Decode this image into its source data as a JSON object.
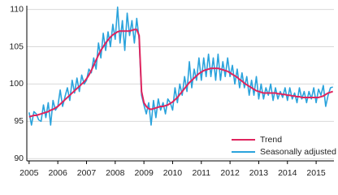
{
  "chart_data": {
    "type": "line",
    "x": [
      2005,
      2005.083,
      2005.167,
      2005.25,
      2005.333,
      2005.417,
      2005.5,
      2005.583,
      2005.667,
      2005.75,
      2005.833,
      2005.917,
      2006,
      2006.083,
      2006.167,
      2006.25,
      2006.333,
      2006.417,
      2006.5,
      2006.583,
      2006.667,
      2006.75,
      2006.833,
      2006.917,
      2007,
      2007.083,
      2007.167,
      2007.25,
      2007.333,
      2007.417,
      2007.5,
      2007.583,
      2007.667,
      2007.75,
      2007.833,
      2007.917,
      2008,
      2008.083,
      2008.167,
      2008.25,
      2008.333,
      2008.417,
      2008.5,
      2008.583,
      2008.667,
      2008.75,
      2008.833,
      2008.917,
      2009,
      2009.083,
      2009.167,
      2009.25,
      2009.333,
      2009.417,
      2009.5,
      2009.583,
      2009.667,
      2009.75,
      2009.833,
      2009.917,
      2010,
      2010.083,
      2010.167,
      2010.25,
      2010.333,
      2010.417,
      2010.5,
      2010.583,
      2010.667,
      2010.75,
      2010.833,
      2010.917,
      2011,
      2011.083,
      2011.167,
      2011.25,
      2011.333,
      2011.417,
      2011.5,
      2011.583,
      2011.667,
      2011.75,
      2011.833,
      2011.917,
      2012,
      2012.083,
      2012.167,
      2012.25,
      2012.333,
      2012.417,
      2012.5,
      2012.583,
      2012.667,
      2012.75,
      2012.833,
      2012.917,
      2013,
      2013.083,
      2013.167,
      2013.25,
      2013.333,
      2013.417,
      2013.5,
      2013.583,
      2013.667,
      2013.75,
      2013.833,
      2013.917,
      2014,
      2014.083,
      2014.167,
      2014.25,
      2014.333,
      2014.417,
      2014.5,
      2014.583,
      2014.667,
      2014.75,
      2014.833,
      2014.917,
      2015,
      2015.083,
      2015.167,
      2015.25,
      2015.333,
      2015.417,
      2015.5,
      2015.583
    ],
    "series": [
      {
        "name": "Seasonally adjusted",
        "color": "#2ba3dc",
        "values": [
          96.2,
          94.5,
          96.3,
          96.0,
          95.2,
          95.0,
          97.2,
          95.5,
          97.5,
          94.5,
          97.8,
          96.5,
          97.0,
          99.2,
          97.0,
          98.3,
          99.5,
          97.8,
          100.5,
          98.8,
          100.8,
          99.0,
          101.2,
          100.0,
          100.5,
          102.0,
          101.5,
          103.5,
          102.0,
          105.5,
          103.5,
          106.8,
          104.5,
          107.0,
          105.0,
          108.0,
          106.0,
          110.3,
          105.5,
          108.5,
          104.5,
          109.5,
          106.5,
          108.5,
          105.5,
          108.8,
          106.0,
          98.5,
          97.2,
          96.0,
          97.5,
          94.5,
          97.8,
          95.5,
          98.0,
          96.5,
          97.5,
          96.0,
          98.0,
          97.5,
          96.5,
          99.5,
          97.5,
          100.0,
          98.5,
          101.0,
          99.0,
          103.0,
          99.5,
          102.0,
          100.5,
          103.5,
          100.5,
          103.5,
          101.0,
          104.0,
          101.0,
          103.5,
          100.5,
          104.0,
          100.5,
          103.0,
          101.0,
          103.5,
          101.0,
          102.5,
          100.0,
          102.0,
          99.5,
          101.5,
          99.5,
          101.0,
          98.5,
          100.5,
          98.5,
          101.0,
          98.0,
          100.0,
          98.0,
          99.5,
          98.5,
          100.0,
          97.8,
          99.5,
          98.0,
          99.0,
          98.2,
          99.5,
          97.8,
          99.5,
          98.0,
          98.8,
          97.5,
          99.5,
          98.0,
          99.0,
          97.5,
          99.0,
          98.0,
          99.5,
          97.5,
          99.3,
          98.5,
          99.8,
          97.0,
          98.5,
          99.5,
          99.6
        ]
      },
      {
        "name": "Trend",
        "color": "#e0245e",
        "values": [
          95.6,
          95.7,
          95.8,
          95.8,
          95.9,
          96.0,
          96.1,
          96.2,
          96.3,
          96.5,
          96.6,
          96.8,
          97.0,
          97.3,
          97.6,
          97.9,
          98.2,
          98.5,
          98.8,
          99.1,
          99.4,
          99.7,
          100.0,
          100.3,
          100.7,
          101.2,
          101.8,
          102.5,
          103.2,
          103.9,
          104.5,
          105.0,
          105.5,
          105.9,
          106.3,
          106.6,
          106.8,
          107.0,
          107.1,
          107.1,
          107.1,
          107.1,
          107.1,
          107.2,
          107.3,
          107.3,
          106.5,
          99.0,
          97.5,
          97.0,
          96.7,
          96.6,
          96.7,
          96.8,
          96.9,
          97.0,
          97.0,
          97.1,
          97.2,
          97.4,
          97.6,
          97.9,
          98.2,
          98.6,
          99.0,
          99.4,
          99.8,
          100.2,
          100.5,
          100.8,
          101.1,
          101.4,
          101.6,
          101.8,
          101.9,
          102.0,
          102.1,
          102.1,
          102.1,
          102.1,
          102.0,
          101.9,
          101.8,
          101.7,
          101.5,
          101.3,
          101.1,
          100.9,
          100.6,
          100.4,
          100.1,
          99.9,
          99.7,
          99.5,
          99.3,
          99.1,
          99.0,
          98.9,
          98.8,
          98.8,
          98.8,
          98.8,
          98.8,
          98.8,
          98.7,
          98.7,
          98.6,
          98.6,
          98.5,
          98.5,
          98.4,
          98.4,
          98.3,
          98.3,
          98.2,
          98.2,
          98.2,
          98.2,
          98.2,
          98.2,
          98.2,
          98.2,
          98.3,
          98.4,
          98.6,
          98.8,
          98.9,
          99.0
        ]
      }
    ],
    "xlim": [
      2004.92,
      2015.62
    ],
    "xticks": [
      2005,
      2006,
      2007,
      2008,
      2009,
      2010,
      2011,
      2012,
      2013,
      2014,
      2015
    ],
    "ylim": [
      89.7,
      110.5
    ],
    "yticks": [
      90,
      95,
      100,
      105,
      110
    ],
    "grid": true,
    "legend": "lower right"
  }
}
